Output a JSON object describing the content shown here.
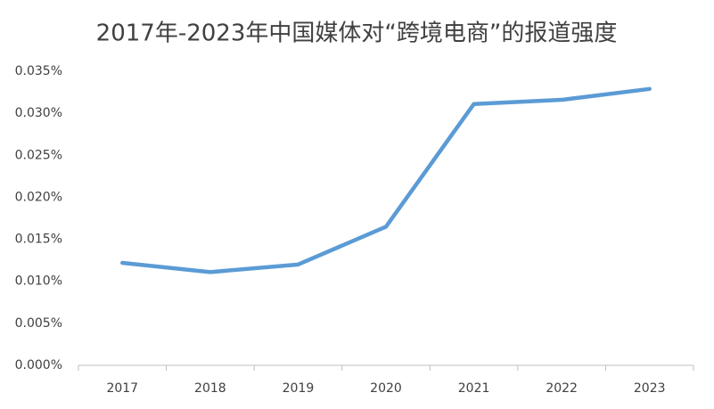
{
  "chart_data": {
    "type": "line",
    "title": "2017年-2023年中国媒体对“跨境电商”的报道强度",
    "categories": [
      "2017",
      "2018",
      "2019",
      "2020",
      "2021",
      "2022",
      "2023"
    ],
    "series": [
      {
        "name": "报道强度",
        "color": "#5b9bd5",
        "values": [
          0.0122,
          0.0111,
          0.012,
          0.0165,
          0.0311,
          0.0316,
          0.0329
        ]
      }
    ],
    "ylim": [
      0,
      0.035
    ],
    "yticks": [
      {
        "value": 0,
        "label": "0.000%"
      },
      {
        "value": 0.005,
        "label": "0.005%"
      },
      {
        "value": 0.01,
        "label": "0.010%"
      },
      {
        "value": 0.015,
        "label": "0.015%"
      },
      {
        "value": 0.02,
        "label": "0.020%"
      },
      {
        "value": 0.025,
        "label": "0.025%"
      },
      {
        "value": 0.03,
        "label": "0.030%"
      },
      {
        "value": 0.035,
        "label": "0.035%"
      }
    ],
    "grid": false,
    "legend": false
  }
}
